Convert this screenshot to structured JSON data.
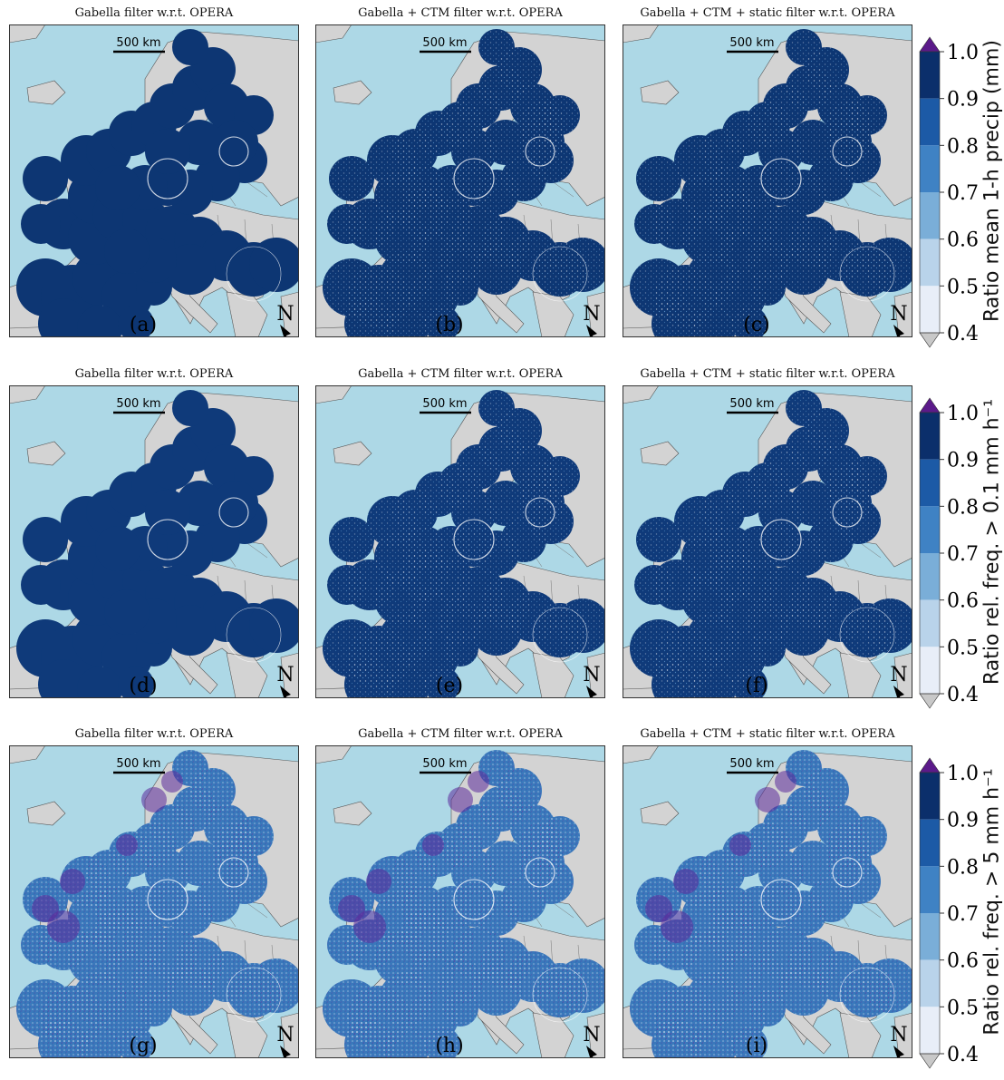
{
  "figure": {
    "rows": [
      {
        "colorbar_label": "Ratio mean 1-h precip (mm)",
        "panels": [
          {
            "title": "Gabella filter w.r.t. OPERA",
            "letter": "(a)",
            "style": "mean"
          },
          {
            "title": "Gabella + CTM filter w.r.t. OPERA",
            "letter": "(b)",
            "style": "mean"
          },
          {
            "title": "Gabella + CTM + static filter w.r.t. OPERA",
            "letter": "(c)",
            "style": "mean"
          }
        ]
      },
      {
        "colorbar_label": "Ratio rel. freq. > 0.1 mm h⁻¹",
        "panels": [
          {
            "title": "Gabella filter w.r.t. OPERA",
            "letter": "(d)",
            "style": "freq01"
          },
          {
            "title": "Gabella + CTM filter w.r.t. OPERA",
            "letter": "(e)",
            "style": "freq01"
          },
          {
            "title": "Gabella + CTM + static filter w.r.t. OPERA",
            "letter": "(f)",
            "style": "freq01"
          }
        ]
      },
      {
        "colorbar_label": "Ratio rel. freq. > 5 mm h⁻¹",
        "panels": [
          {
            "title": "Gabella filter w.r.t. OPERA",
            "letter": "(g)",
            "style": "freq5"
          },
          {
            "title": "Gabella + CTM filter w.r.t. OPERA",
            "letter": "(h)",
            "style": "freq5"
          },
          {
            "title": "Gabella + CTM + static filter w.r.t. OPERA",
            "letter": "(i)",
            "style": "freq5"
          }
        ]
      }
    ],
    "scale_bar_label": "500 km",
    "north_label": "N",
    "colorbar_ticks": [
      "1.0",
      "0.9",
      "0.8",
      "0.7",
      "0.6",
      "0.5",
      "0.4"
    ],
    "colorbar_colors": [
      "#0b2f6b",
      "#1c5aa6",
      "#3f82c4",
      "#7aaed8",
      "#b9d3ea",
      "#e8eef8",
      "#ffffff"
    ],
    "extend_top_color": "#5b1a8a",
    "extend_bottom_color": "#c8c8c8",
    "sea_color": "#add8e6",
    "land_color": "#d3d3d3"
  }
}
